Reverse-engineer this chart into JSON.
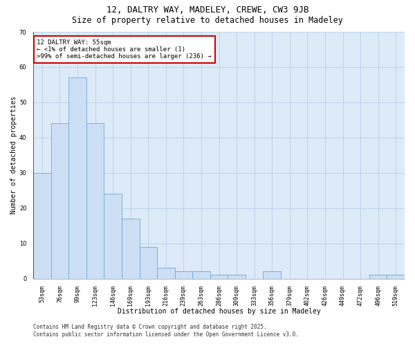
{
  "title": "12, DALTRY WAY, MADELEY, CREWE, CW3 9JB",
  "subtitle": "Size of property relative to detached houses in Madeley",
  "xlabel": "Distribution of detached houses by size in Madeley",
  "ylabel": "Number of detached properties",
  "categories": [
    "53sqm",
    "76sqm",
    "99sqm",
    "123sqm",
    "146sqm",
    "169sqm",
    "193sqm",
    "216sqm",
    "239sqm",
    "263sqm",
    "286sqm",
    "309sqm",
    "333sqm",
    "356sqm",
    "379sqm",
    "402sqm",
    "426sqm",
    "449sqm",
    "472sqm",
    "496sqm",
    "519sqm"
  ],
  "values": [
    30,
    44,
    57,
    44,
    24,
    17,
    9,
    3,
    2,
    2,
    1,
    1,
    0,
    2,
    0,
    0,
    0,
    0,
    0,
    1,
    1
  ],
  "bar_color": "#ccdff5",
  "bar_edge_color": "#6aaad4",
  "highlight_bar_idx": 0,
  "annotation_title": "12 DALTRY WAY: 55sqm",
  "annotation_line1": "← <1% of detached houses are smaller (1)",
  "annotation_line2": ">99% of semi-detached houses are larger (236) →",
  "annotation_box_color": "#ffffff",
  "annotation_box_edge": "#cc0000",
  "highlight_line_color": "#cc0000",
  "ylim": [
    0,
    70
  ],
  "yticks": [
    0,
    10,
    20,
    30,
    40,
    50,
    60,
    70
  ],
  "grid_color": "#b8cfe8",
  "background_color": "#ddeaf8",
  "footer_line1": "Contains HM Land Registry data © Crown copyright and database right 2025.",
  "footer_line2": "Contains public sector information licensed under the Open Government Licence v3.0.",
  "title_fontsize": 9,
  "subtitle_fontsize": 8.5,
  "axis_label_fontsize": 7,
  "tick_fontsize": 6,
  "annotation_fontsize": 6.5,
  "footer_fontsize": 5.5
}
